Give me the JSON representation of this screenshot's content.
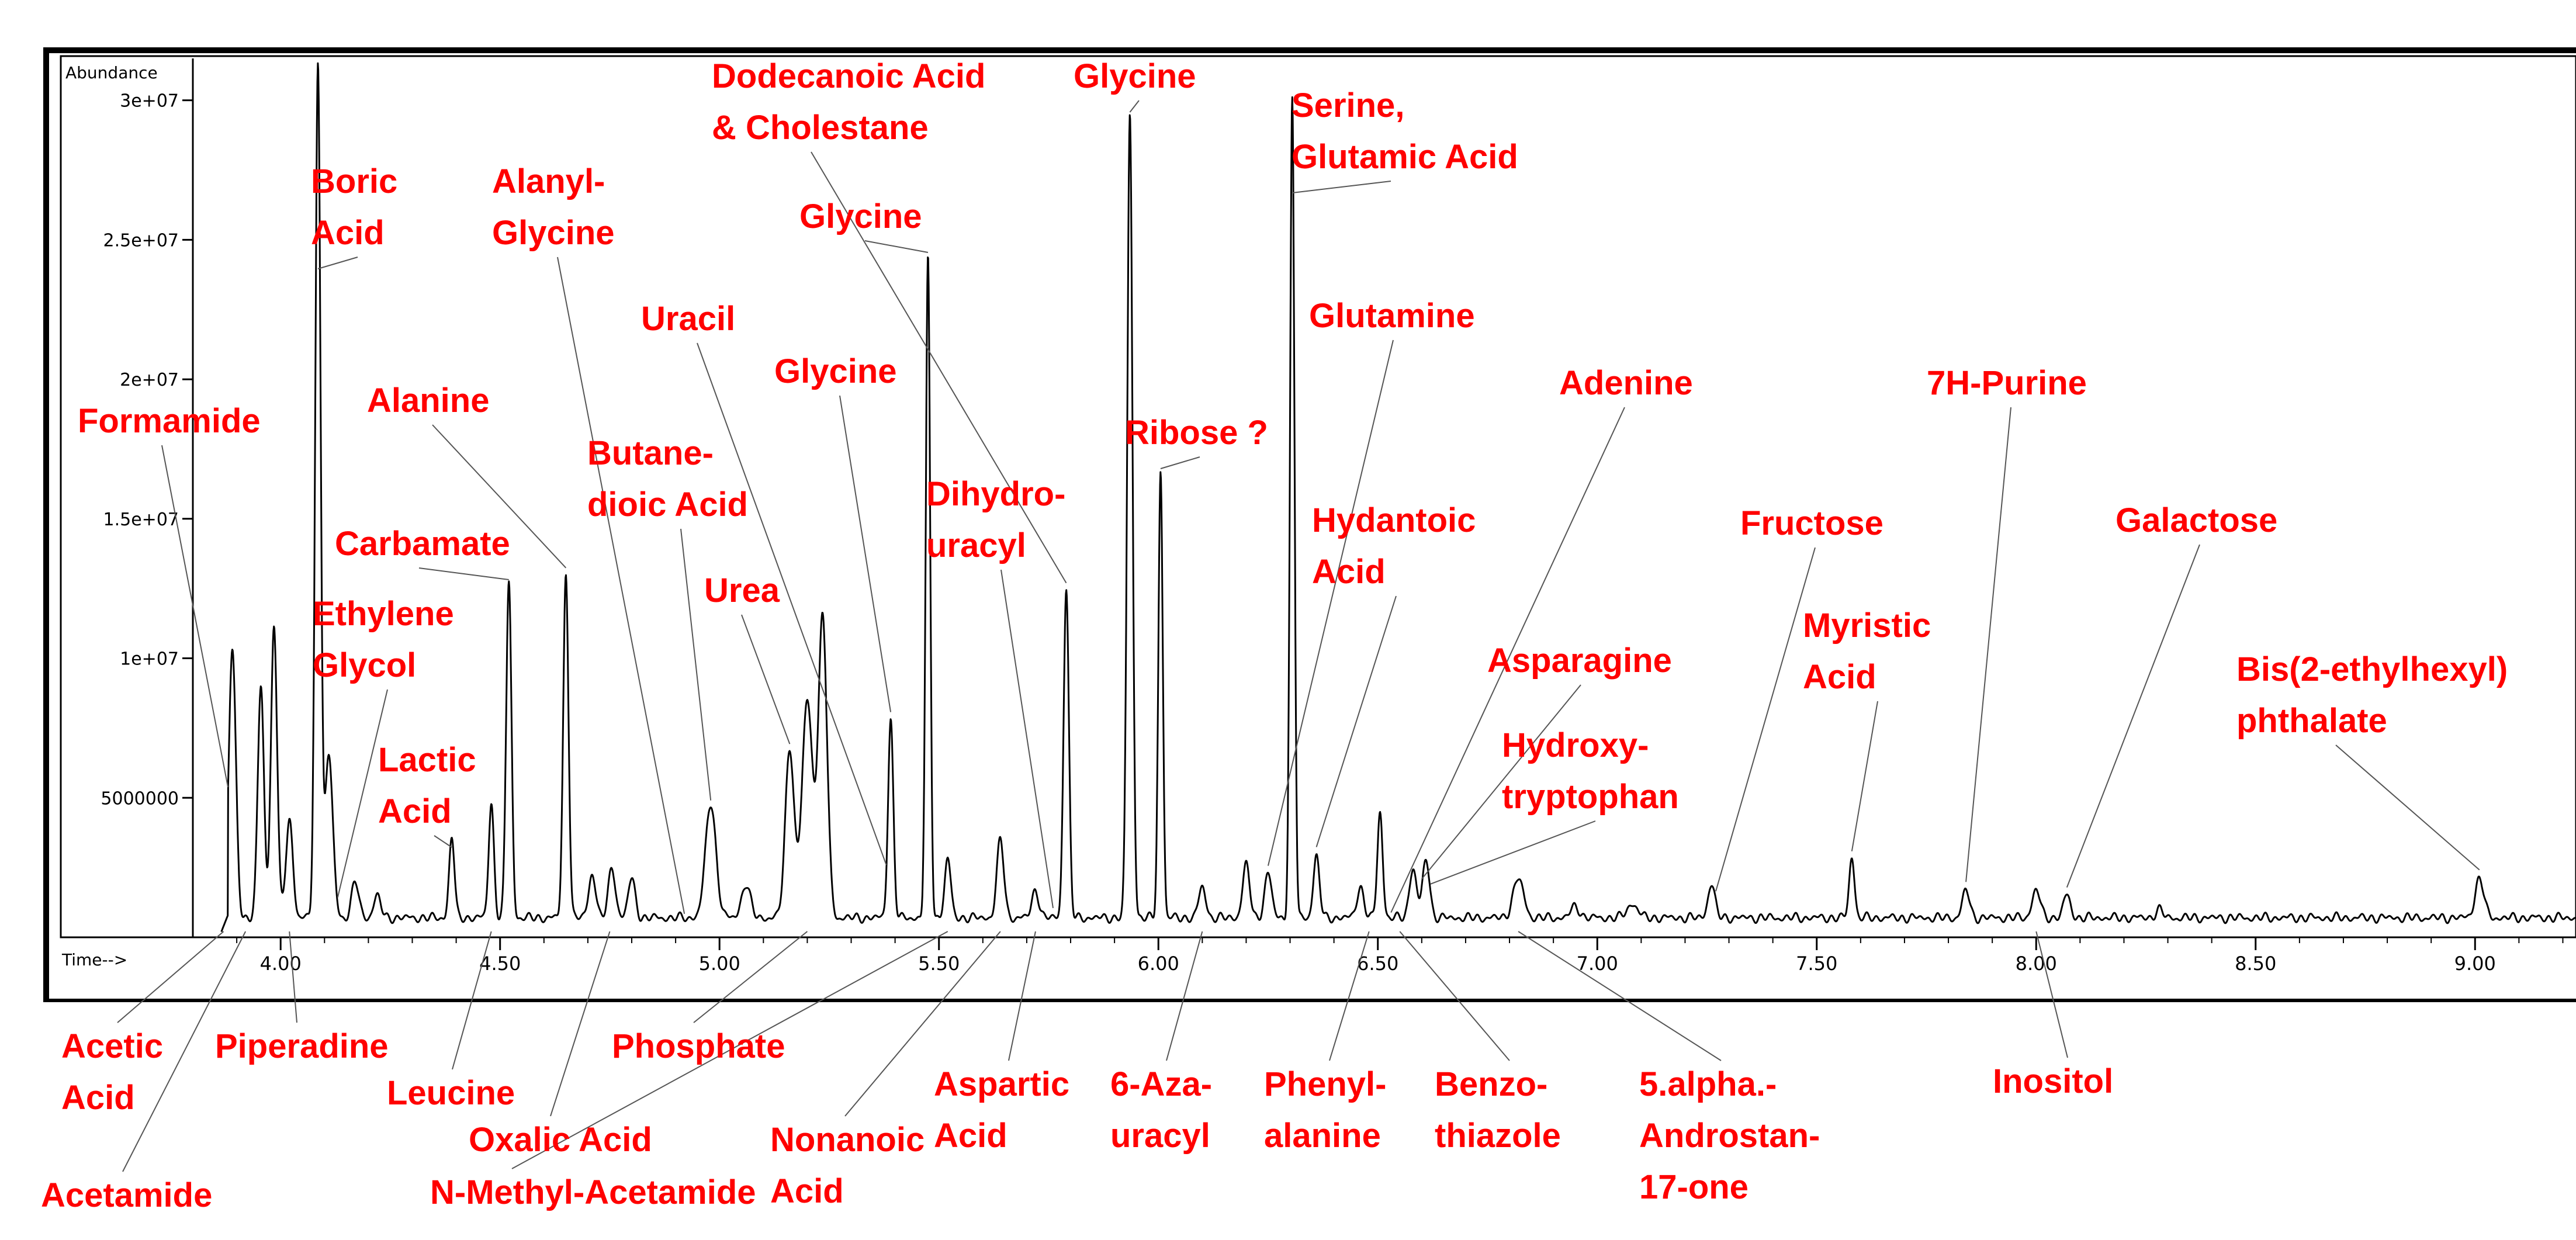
{
  "chart_data": {
    "type": "line",
    "title": "",
    "ylabel": "Abundance",
    "xlabel": "Time-->",
    "xlim": [
      3.8,
      9.23
    ],
    "ylim": [
      0,
      31500000
    ],
    "x_ticks": [
      4.0,
      4.5,
      5.0,
      5.5,
      6.0,
      6.5,
      7.0,
      7.5,
      8.0,
      8.5,
      9.0
    ],
    "x_tick_labels": [
      "4.00",
      "4.50",
      "5.00",
      "5.50",
      "6.00",
      "6.50",
      "7.00",
      "7.50",
      "8.00",
      "8.50",
      "9.00"
    ],
    "y_ticks": [
      5000000,
      10000000,
      15000000,
      20000000,
      25000000,
      30000000
    ],
    "y_tick_labels": [
      "5000000",
      "1e+07",
      "1.5e+07",
      "2e+07",
      "2.5e+07",
      "3e+07"
    ],
    "grid": false,
    "legend": "none",
    "line_color": "#000000",
    "label_color": "#ff0000",
    "baseline": 700000,
    "peaks": [
      {
        "x": 3.89,
        "y": 10300000,
        "w": 0.008
      },
      {
        "x": 3.955,
        "y": 9000000,
        "w": 0.007
      },
      {
        "x": 3.985,
        "y": 11200000,
        "w": 0.007
      },
      {
        "x": 4.02,
        "y": 4200000,
        "w": 0.008
      },
      {
        "x": 4.085,
        "y": 31200000,
        "w": 0.006
      },
      {
        "x": 4.11,
        "y": 6500000,
        "w": 0.009
      },
      {
        "x": 4.17,
        "y": 2000000,
        "w": 0.008
      },
      {
        "x": 4.22,
        "y": 1500000,
        "w": 0.008
      },
      {
        "x": 4.39,
        "y": 3600000,
        "w": 0.006
      },
      {
        "x": 4.48,
        "y": 4800000,
        "w": 0.006
      },
      {
        "x": 4.52,
        "y": 12800000,
        "w": 0.006
      },
      {
        "x": 4.65,
        "y": 13000000,
        "w": 0.006
      },
      {
        "x": 4.71,
        "y": 2300000,
        "w": 0.008
      },
      {
        "x": 4.755,
        "y": 2500000,
        "w": 0.008
      },
      {
        "x": 4.8,
        "y": 2100000,
        "w": 0.008
      },
      {
        "x": 4.98,
        "y": 4800000,
        "w": 0.012
      },
      {
        "x": 5.06,
        "y": 1900000,
        "w": 0.01
      },
      {
        "x": 5.16,
        "y": 6800000,
        "w": 0.01
      },
      {
        "x": 5.2,
        "y": 8500000,
        "w": 0.012
      },
      {
        "x": 5.235,
        "y": 11400000,
        "w": 0.01
      },
      {
        "x": 5.39,
        "y": 7800000,
        "w": 0.006
      },
      {
        "x": 5.475,
        "y": 24300000,
        "w": 0.005
      },
      {
        "x": 5.52,
        "y": 2800000,
        "w": 0.007
      },
      {
        "x": 5.64,
        "y": 3500000,
        "w": 0.008
      },
      {
        "x": 5.72,
        "y": 1700000,
        "w": 0.008
      },
      {
        "x": 5.79,
        "y": 12500000,
        "w": 0.006
      },
      {
        "x": 5.935,
        "y": 29500000,
        "w": 0.006
      },
      {
        "x": 6.005,
        "y": 16700000,
        "w": 0.005
      },
      {
        "x": 6.1,
        "y": 1800000,
        "w": 0.008
      },
      {
        "x": 6.2,
        "y": 2600000,
        "w": 0.008
      },
      {
        "x": 6.25,
        "y": 2300000,
        "w": 0.008
      },
      {
        "x": 6.305,
        "y": 30000000,
        "w": 0.005
      },
      {
        "x": 6.36,
        "y": 2900000,
        "w": 0.007
      },
      {
        "x": 6.46,
        "y": 1800000,
        "w": 0.008
      },
      {
        "x": 6.505,
        "y": 4500000,
        "w": 0.006
      },
      {
        "x": 6.58,
        "y": 2500000,
        "w": 0.008
      },
      {
        "x": 6.61,
        "y": 2800000,
        "w": 0.008
      },
      {
        "x": 6.82,
        "y": 2100000,
        "w": 0.012
      },
      {
        "x": 6.95,
        "y": 1100000,
        "w": 0.01
      },
      {
        "x": 7.08,
        "y": 1200000,
        "w": 0.012
      },
      {
        "x": 7.26,
        "y": 1900000,
        "w": 0.008
      },
      {
        "x": 7.58,
        "y": 2900000,
        "w": 0.006
      },
      {
        "x": 7.84,
        "y": 1700000,
        "w": 0.008
      },
      {
        "x": 8.0,
        "y": 1700000,
        "w": 0.009
      },
      {
        "x": 8.07,
        "y": 1500000,
        "w": 0.008
      },
      {
        "x": 8.28,
        "y": 1000000,
        "w": 0.008
      },
      {
        "x": 9.01,
        "y": 2100000,
        "w": 0.01
      }
    ],
    "annotations": [
      {
        "lines": [
          "Formamide"
        ],
        "peak_x": 3.88
      },
      {
        "lines": [
          "Acetic",
          "Acid"
        ],
        "peak_x": 3.87
      },
      {
        "lines": [
          "Acetamide"
        ],
        "peak_x": 3.92
      },
      {
        "lines": [
          "Piperadine"
        ],
        "peak_x": 4.02
      },
      {
        "lines": [
          "Boric",
          "Acid"
        ],
        "peak_x": 4.085
      },
      {
        "lines": [
          "Ethylene",
          "Glycol"
        ],
        "peak_x": 4.13
      },
      {
        "lines": [
          "Lactic",
          "Acid"
        ],
        "peak_x": 4.39
      },
      {
        "lines": [
          "Leucine"
        ],
        "peak_x": 4.48
      },
      {
        "lines": [
          "Carbamate"
        ],
        "peak_x": 4.52
      },
      {
        "lines": [
          "Alanine"
        ],
        "peak_x": 4.65
      },
      {
        "lines": [
          "Alanyl-",
          "Glycine"
        ],
        "peak_x": 4.92
      },
      {
        "lines": [
          "Oxalic Acid"
        ],
        "peak_x": 4.75
      },
      {
        "lines": [
          "Butane-",
          "dioic Acid"
        ],
        "peak_x": 4.98
      },
      {
        "lines": [
          "Uracil"
        ],
        "peak_x": 5.38
      },
      {
        "lines": [
          "Urea"
        ],
        "peak_x": 5.16
      },
      {
        "lines": [
          "Phosphate"
        ],
        "peak_x": 5.2
      },
      {
        "lines": [
          "N-Methyl-Acetamide"
        ],
        "peak_x": 5.52
      },
      {
        "lines": [
          "Glycine"
        ],
        "peak_x": 5.39
      },
      {
        "lines": [
          "Glycine"
        ],
        "peak_x": 5.475
      },
      {
        "lines": [
          "Nonanoic",
          "Acid"
        ],
        "peak_x": 5.64
      },
      {
        "lines": [
          "Dodecanoic  Acid",
          "& Cholestane"
        ],
        "peak_x": 5.79
      },
      {
        "lines": [
          "Dihydro-",
          "uracyl"
        ],
        "peak_x": 5.76
      },
      {
        "lines": [
          "Aspartic",
          "Acid"
        ],
        "peak_x": 5.72
      },
      {
        "lines": [
          "Glycine"
        ],
        "peak_x": 5.935
      },
      {
        "lines": [
          "Ribose ?"
        ],
        "peak_x": 6.005
      },
      {
        "lines": [
          "6-Aza-",
          "uracyl"
        ],
        "peak_x": 6.1
      },
      {
        "lines": [
          "Serine,",
          "Glutamic  Acid"
        ],
        "peak_x": 6.305
      },
      {
        "lines": [
          "Glutamine"
        ],
        "peak_x": 6.25
      },
      {
        "lines": [
          "Hydantoic",
          "Acid"
        ],
        "peak_x": 6.36
      },
      {
        "lines": [
          "Phenyl-",
          "alanine"
        ],
        "peak_x": 6.48
      },
      {
        "lines": [
          "Adenine"
        ],
        "peak_x": 6.53
      },
      {
        "lines": [
          "Asparagine"
        ],
        "peak_x": 6.6
      },
      {
        "lines": [
          "Hydroxy-",
          "tryptophan"
        ],
        "peak_x": 6.62
      },
      {
        "lines": [
          "Benzo-",
          "thiazole"
        ],
        "peak_x": 6.55
      },
      {
        "lines": [
          "5.alpha.-",
          "Androstan-",
          "17-one"
        ],
        "peak_x": 6.82
      },
      {
        "lines": [
          "Fructose"
        ],
        "peak_x": 7.27
      },
      {
        "lines": [
          "Myristic",
          "Acid"
        ],
        "peak_x": 7.58
      },
      {
        "lines": [
          "7H-Purine"
        ],
        "peak_x": 7.84
      },
      {
        "lines": [
          "Inositol"
        ],
        "peak_x": 8.0
      },
      {
        "lines": [
          "Galactose"
        ],
        "peak_x": 8.07
      },
      {
        "lines": [
          "Bis(2-ethylhexyl)",
          "phthalate"
        ],
        "peak_x": 9.01
      }
    ]
  }
}
